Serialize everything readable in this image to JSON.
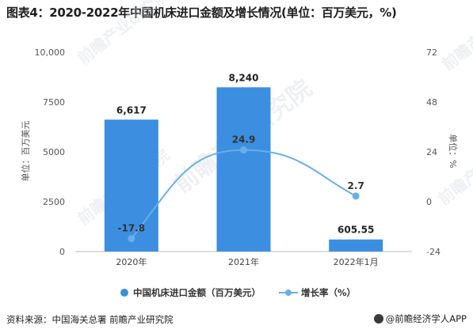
{
  "title": "图表4：2020-2022年中国机床进口金额及增长情况(单位：百万美元，%)",
  "source": "资料来源：中国海关总署 前瞻产业研究院",
  "brand": "@前瞻经济学人APP",
  "watermark": "前瞻产业研究院",
  "colors": {
    "bar": "#3c8ee0",
    "line": "#6aaee6",
    "axis": "#999999"
  },
  "chart_data": {
    "type": "bar",
    "categories": [
      "2020年",
      "2021年",
      "2022年1月"
    ],
    "series": [
      {
        "name": "中国机床进口金额（百万美元）",
        "type": "bar",
        "axis": "left",
        "values": [
          6617,
          8240,
          605.55
        ],
        "labels": [
          "6,617",
          "8,240",
          "605.55"
        ]
      },
      {
        "name": "增长率（%）",
        "type": "line",
        "axis": "right",
        "values": [
          -17.8,
          24.9,
          2.7
        ],
        "labels": [
          "-17.8",
          "24.9",
          "2.7"
        ]
      }
    ],
    "ylabel": "单位：百万美元",
    "y2label": "单位：%",
    "ylim": [
      0,
      10000
    ],
    "yticks": [
      "0",
      "2500",
      "5000",
      "7500",
      "10,000"
    ],
    "ytick_values": [
      0,
      2500,
      5000,
      7500,
      10000
    ],
    "y2lim": [
      -24,
      72
    ],
    "y2ticks": [
      "-24",
      "0",
      "24",
      "48",
      "72"
    ],
    "y2tick_values": [
      -24,
      0,
      24,
      48,
      72
    ],
    "legend_position": "bottom-center",
    "grid": false
  }
}
